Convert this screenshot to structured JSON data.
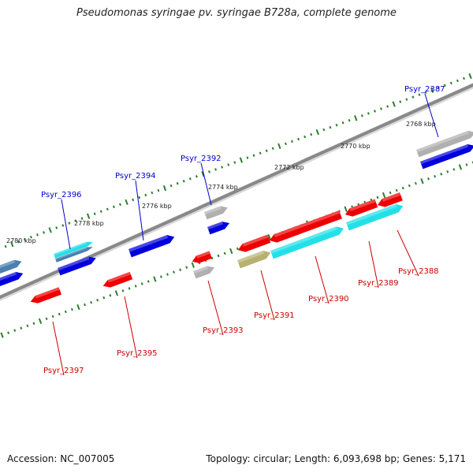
{
  "title": "Pseudomonas syringae pv. syringae B728a, complete genome",
  "footer": {
    "accession": "Accession: NC_007005",
    "summary": "Topology: circular; Length: 6,093,698 bp; Genes: 5,171"
  },
  "colors": {
    "forward_label": "#0000cc",
    "reverse_label": "#cc0000",
    "backbone": "#888888",
    "tick": "#2e7d2e",
    "cds_blue": "#0000dd",
    "cds_red": "#ee0000",
    "gene_gray": "#b0b0b0",
    "feature_cyan": "#22e0e8",
    "feature_olive": "#b8b070",
    "feature_steel": "#4a7fb0"
  },
  "tick_labels": [
    "2768 kbp",
    "2770 kbp",
    "2772 kbp",
    "2774 kbp",
    "2776 kbp",
    "2778 kbp",
    "2780 kbp"
  ],
  "genes_forward": [
    "Psyr_2387",
    "Psyr_2392",
    "Psyr_2394",
    "Psyr_2396"
  ],
  "genes_reverse": [
    "Psyr_2388",
    "Psyr_2389",
    "Psyr_2390",
    "Psyr_2391",
    "Psyr_2393",
    "Psyr_2395",
    "Psyr_2397"
  ]
}
